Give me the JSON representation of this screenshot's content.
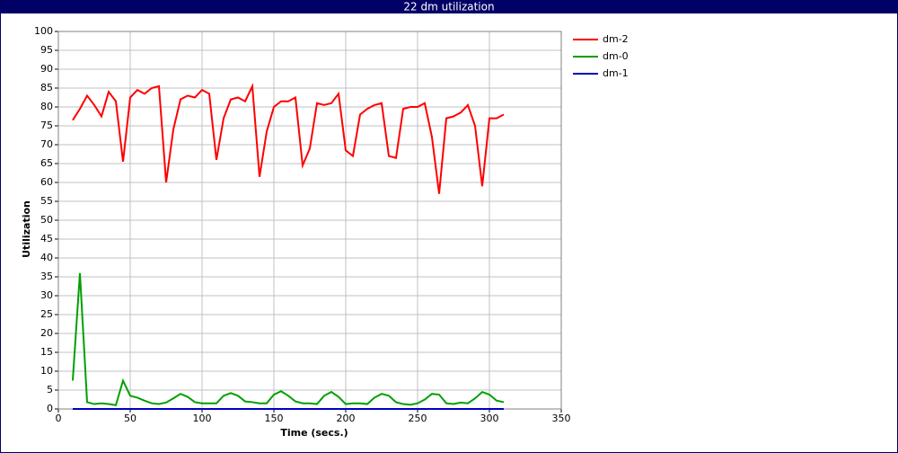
{
  "chart_data": {
    "type": "line",
    "title": "22 dm utilization",
    "x_label": "Time (secs.)",
    "y_label": "Utilization",
    "xlim": [
      0,
      350
    ],
    "xticks": [
      0,
      50,
      100,
      150,
      200,
      250,
      300,
      350
    ],
    "ylim": [
      0,
      100
    ],
    "yticks": [
      0,
      5,
      10,
      15,
      20,
      25,
      30,
      35,
      40,
      45,
      50,
      55,
      60,
      65,
      70,
      75,
      80,
      85,
      90,
      95,
      100
    ],
    "grid": true,
    "legend": "right",
    "x": [
      10,
      15,
      20,
      25,
      30,
      35,
      40,
      45,
      50,
      55,
      60,
      65,
      70,
      75,
      80,
      85,
      90,
      95,
      100,
      105,
      110,
      115,
      120,
      125,
      130,
      135,
      140,
      145,
      150,
      155,
      160,
      165,
      170,
      175,
      180,
      185,
      190,
      195,
      200,
      205,
      210,
      215,
      220,
      225,
      230,
      235,
      240,
      245,
      250,
      255,
      260,
      265,
      270,
      275,
      280,
      285,
      290,
      295,
      300,
      305,
      310
    ],
    "series": [
      {
        "name": "dm-2",
        "color": "#ff0000",
        "values": [
          76.5,
          79.5,
          83,
          80.5,
          77.5,
          84,
          81.5,
          65.5,
          82.5,
          84.5,
          83.5,
          85,
          85.5,
          60,
          74,
          82,
          83,
          82.5,
          84.5,
          83.5,
          66,
          77,
          82,
          82.5,
          81.5,
          85.5,
          61.5,
          73.5,
          80,
          81.5,
          81.5,
          82.5,
          64.5,
          69,
          81,
          80.5,
          81,
          83.5,
          68.5,
          67,
          78,
          79.5,
          80.5,
          81,
          67,
          66.5,
          79.5,
          80,
          80,
          81,
          72,
          57,
          77,
          77.5,
          78.5,
          80.5,
          75,
          59,
          77,
          77,
          78
        ]
      },
      {
        "name": "dm-0",
        "color": "#00a000",
        "values": [
          7.5,
          36,
          1.8,
          1.3,
          1.5,
          1.3,
          1,
          7.5,
          3.5,
          3,
          2.2,
          1.5,
          1.3,
          1.7,
          2.8,
          4,
          3.2,
          1.8,
          1.5,
          1.5,
          1.5,
          3.5,
          4.2,
          3.5,
          2,
          1.8,
          1.5,
          1.5,
          3.8,
          4.7,
          3.5,
          2,
          1.5,
          1.5,
          1.3,
          3.5,
          4.5,
          3.2,
          1.3,
          1.5,
          1.5,
          1.3,
          3,
          4,
          3.5,
          1.8,
          1.3,
          1.1,
          1.5,
          2.5,
          4,
          3.8,
          1.5,
          1.3,
          1.7,
          1.5,
          2.8,
          4.5,
          3.8,
          2.2,
          1.8
        ]
      },
      {
        "name": "dm-1",
        "color": "#0000c0",
        "values": [
          0,
          0,
          0,
          0,
          0,
          0,
          0,
          0,
          0,
          0,
          0,
          0,
          0,
          0,
          0,
          0,
          0,
          0,
          0,
          0,
          0,
          0,
          0,
          0,
          0,
          0,
          0,
          0,
          0,
          0,
          0,
          0,
          0,
          0,
          0,
          0,
          0,
          0,
          0,
          0,
          0,
          0,
          0,
          0,
          0,
          0,
          0,
          0,
          0,
          0,
          0,
          0,
          0,
          0,
          0,
          0,
          0,
          0,
          0,
          0,
          0
        ]
      }
    ]
  }
}
